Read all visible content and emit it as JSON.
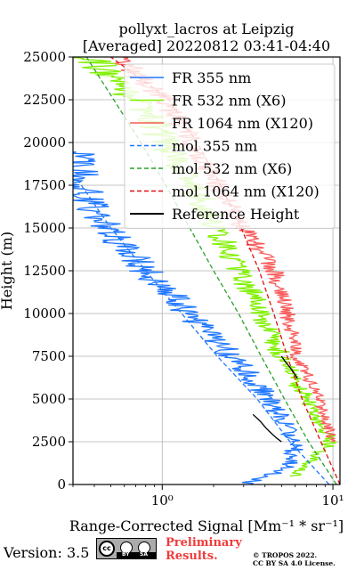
{
  "title": {
    "line1": "pollyxt_lacros at Leipzig",
    "line2": "[Averaged] 20220812 03:41-04:40"
  },
  "footer": {
    "version": "Version: 3.5",
    "prelim_line1": "Preliminary",
    "prelim_line2": "Results.",
    "copyright_line1": "© TROPOS 2022.",
    "copyright_line2": "CC BY SA 4.0 License.",
    "license_badge": "cc-by-sa-icon",
    "badge_cc": "cc",
    "badge_by": "BY",
    "badge_sa": "SA"
  },
  "chart_data": {
    "type": "line",
    "xlabel": "Range-Corrected Signal [Mm⁻¹ * sr⁻¹]",
    "ylabel": "Height (m)",
    "xscale": "log",
    "xlim": [
      0.3,
      11
    ],
    "ylim": [
      0,
      25000
    ],
    "xticks": [
      {
        "value": 1,
        "label": "10⁰"
      },
      {
        "value": 10,
        "label": "10¹"
      }
    ],
    "yticks": [
      0,
      2500,
      5000,
      7500,
      10000,
      12500,
      15000,
      17500,
      20000,
      22500,
      25000
    ],
    "ytick_labels": [
      "0",
      "2500",
      "5000",
      "7500",
      "10000",
      "12500",
      "15000",
      "17500",
      "20000",
      "22500",
      "25000"
    ],
    "grid": true,
    "legend_position": "top-right",
    "colors": {
      "blue": "#1f77ff",
      "green": "#80f000",
      "red": "#f85c5c",
      "black": "#000000"
    },
    "series": [
      {
        "name": "FR 355 nm",
        "style": "solid",
        "color": "#1f77ff",
        "points": [
          [
            3.0,
            0
          ],
          [
            5.6,
            1000
          ],
          [
            6.0,
            2500
          ],
          [
            4.2,
            5000
          ],
          [
            3.2,
            6500
          ],
          [
            2.3,
            8000
          ],
          [
            1.6,
            9500
          ],
          [
            1.15,
            11000
          ],
          [
            0.8,
            12500
          ],
          [
            0.58,
            14000
          ],
          [
            0.44,
            15500
          ],
          [
            0.34,
            17500
          ],
          [
            0.3,
            19500
          ]
        ]
      },
      {
        "name": "FR 532 nm (X6)",
        "style": "solid",
        "color": "#80f000",
        "points": [
          [
            6.0,
            500
          ],
          [
            9.8,
            2500
          ],
          [
            7.0,
            5000
          ],
          [
            5.0,
            7500
          ],
          [
            3.8,
            10000
          ],
          [
            2.8,
            12500
          ],
          [
            2.1,
            15000
          ],
          [
            1.5,
            17500
          ],
          [
            1.05,
            20000
          ],
          [
            0.7,
            22500
          ],
          [
            0.38,
            25000
          ]
        ]
      },
      {
        "name": "FR 1064 nm (X120)",
        "style": "solid",
        "color": "#f85c5c",
        "points": [
          [
            10.0,
            2500
          ],
          [
            8.3,
            5000
          ],
          [
            6.2,
            7500
          ],
          [
            5.4,
            10000
          ],
          [
            4.5,
            12500
          ],
          [
            3.0,
            15000
          ],
          [
            2.1,
            17500
          ],
          [
            1.5,
            20000
          ],
          [
            1.0,
            22500
          ],
          [
            0.55,
            25000
          ]
        ]
      },
      {
        "name": "mol 355 nm",
        "style": "dashed",
        "color": "#1f77ff",
        "points": [
          [
            9.5,
            0
          ],
          [
            5.6,
            2500
          ],
          [
            3.6,
            5000
          ],
          [
            2.1,
            7500
          ],
          [
            1.3,
            10000
          ],
          [
            0.8,
            12500
          ],
          [
            0.5,
            15000
          ],
          [
            0.32,
            17800
          ]
        ]
      },
      {
        "name": "mol 532 nm (X6)",
        "style": "dashed",
        "color": "#2ca02c",
        "points": [
          [
            10.5,
            0
          ],
          [
            7.2,
            2500
          ],
          [
            5.2,
            5000
          ],
          [
            3.8,
            7500
          ],
          [
            2.8,
            10000
          ],
          [
            2.0,
            12500
          ],
          [
            1.45,
            15000
          ],
          [
            1.05,
            17500
          ],
          [
            0.75,
            20000
          ],
          [
            0.52,
            22500
          ],
          [
            0.36,
            25000
          ]
        ]
      },
      {
        "name": "mol 1064 nm (X120)",
        "style": "dashed",
        "color": "#e01010",
        "points": [
          [
            11.0,
            0
          ],
          [
            8.5,
            2500
          ],
          [
            6.6,
            5000
          ],
          [
            5.4,
            7500
          ],
          [
            4.5,
            10000
          ],
          [
            3.7,
            12500
          ],
          [
            2.9,
            15000
          ],
          [
            2.2,
            17500
          ],
          [
            1.6,
            20000
          ],
          [
            1.1,
            22500
          ],
          [
            0.5,
            25000
          ]
        ]
      },
      {
        "name": "Reference Height",
        "style": "solid",
        "color": "#000000",
        "segments": [
          [
            [
              3.4,
              4100
            ],
            [
              3.75,
              3700
            ],
            [
              4.05,
              3300
            ],
            [
              4.35,
              3000
            ],
            [
              4.7,
              2700
            ],
            [
              5.0,
              2500
            ]
          ],
          [
            [
              5.0,
              7500
            ],
            [
              5.25,
              7200
            ],
            [
              5.55,
              6900
            ],
            [
              5.85,
              6600
            ],
            [
              6.2,
              6200
            ]
          ]
        ]
      }
    ]
  }
}
